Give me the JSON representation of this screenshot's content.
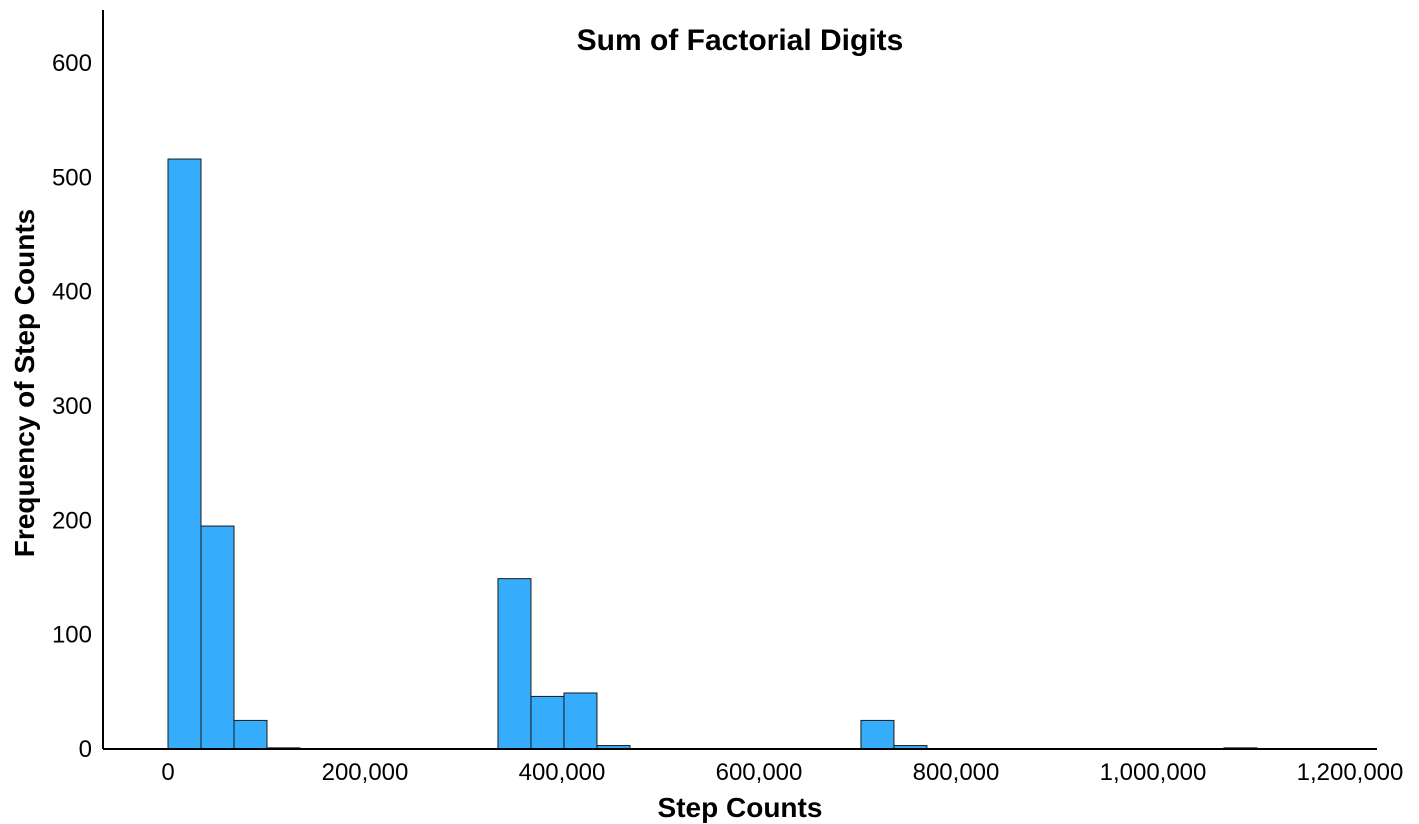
{
  "chart_data": {
    "type": "bar",
    "title": "Sum of Factorial Digits",
    "xlabel": "Step Counts",
    "ylabel": "Frequency of Step Counts",
    "xlim": [
      -15000,
      1230000
    ],
    "ylim": [
      0,
      640
    ],
    "bin_width": 33500,
    "bins": [
      {
        "start": 0,
        "end": 33500,
        "count": 516
      },
      {
        "start": 33500,
        "end": 67000,
        "count": 195
      },
      {
        "start": 67000,
        "end": 100500,
        "count": 25
      },
      {
        "start": 100500,
        "end": 134000,
        "count": 1
      },
      {
        "start": 335000,
        "end": 368500,
        "count": 149
      },
      {
        "start": 368500,
        "end": 402000,
        "count": 46
      },
      {
        "start": 402000,
        "end": 435500,
        "count": 49
      },
      {
        "start": 435500,
        "end": 469000,
        "count": 3
      },
      {
        "start": 703500,
        "end": 737000,
        "count": 25
      },
      {
        "start": 737000,
        "end": 770500,
        "count": 3
      },
      {
        "start": 1072000,
        "end": 1105500,
        "count": 1
      }
    ],
    "x_ticks": [
      {
        "value": 0,
        "label": "0"
      },
      {
        "value": 200000,
        "label": "200,000"
      },
      {
        "value": 400000,
        "label": "400,000"
      },
      {
        "value": 600000,
        "label": "600,000"
      },
      {
        "value": 800000,
        "label": "800,000"
      },
      {
        "value": 1000000,
        "label": "1,000,000"
      },
      {
        "value": 1200000,
        "label": "1,200,000"
      }
    ],
    "y_ticks": [
      {
        "value": 0,
        "label": "0"
      },
      {
        "value": 100,
        "label": "100"
      },
      {
        "value": 200,
        "label": "200"
      },
      {
        "value": 300,
        "label": "300"
      },
      {
        "value": 400,
        "label": "400"
      },
      {
        "value": 500,
        "label": "500"
      },
      {
        "value": 600,
        "label": "600"
      }
    ],
    "grid": false,
    "bar_color": "#36ACFC",
    "bar_edge_color": "#1a1a1a"
  }
}
